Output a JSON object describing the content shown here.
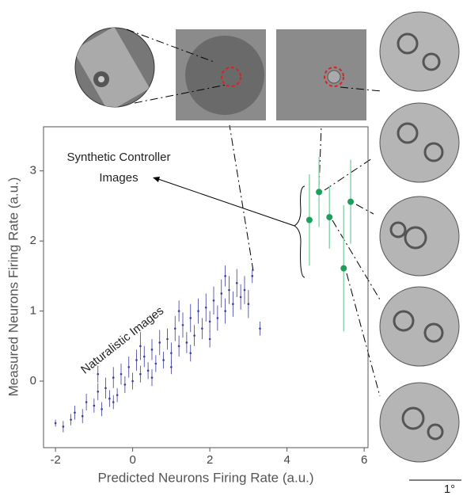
{
  "chart_data": {
    "type": "scatter",
    "x_label": "Predicted Neurons Firing Rate (a.u.)",
    "y_label": "Measured Neurons Firing Rate (a.u.)",
    "synthetic_label": [
      "Synthetic Controller",
      "Images"
    ],
    "natural_label": "Naturalistic Images",
    "scale_bar_label": "1°",
    "xlim": [
      -2.31,
      6.1
    ],
    "ylim": [
      -0.95,
      3.63
    ],
    "xticks": [
      -2,
      0,
      2,
      4,
      6
    ],
    "yticks": [
      0,
      1,
      2,
      3
    ],
    "series": [
      {
        "color": "#3a3aa0",
        "x": [
          -2.0,
          -1.8,
          -1.5,
          -1.3,
          -1.2,
          -1.0,
          -0.9,
          -0.8,
          -0.7,
          -0.6,
          -0.5,
          -0.4,
          -0.3,
          -0.2,
          -0.1,
          0.0,
          0.1,
          0.2,
          0.3,
          0.4,
          0.5,
          0.6,
          0.7,
          0.8,
          0.9,
          1.0,
          1.1,
          1.2,
          1.3,
          1.4,
          1.5,
          1.6,
          1.7,
          1.8,
          1.9,
          2.0,
          2.1,
          2.2,
          2.3,
          2.4,
          2.5,
          2.6,
          2.7,
          2.8,
          2.9,
          3.0,
          3.1,
          3.3,
          -0.5,
          0.5,
          1.0,
          1.5,
          2.0,
          -1.6,
          0.2,
          1.2,
          2.4,
          -0.9
        ],
        "values": [
          -0.6,
          -0.65,
          -0.45,
          -0.5,
          -0.3,
          -0.35,
          -0.15,
          -0.4,
          -0.1,
          -0.25,
          0.05,
          -0.2,
          0.1,
          -0.05,
          0.2,
          0.0,
          0.3,
          0.1,
          0.35,
          0.15,
          0.45,
          0.25,
          0.55,
          0.3,
          0.6,
          0.4,
          0.75,
          0.5,
          0.8,
          0.55,
          0.9,
          0.65,
          1.0,
          0.75,
          1.05,
          0.85,
          1.15,
          0.9,
          1.25,
          1.0,
          1.3,
          1.1,
          1.4,
          1.2,
          1.3,
          1.1,
          1.5,
          0.75,
          -0.3,
          0.05,
          0.2,
          0.4,
          0.6,
          -0.55,
          0.5,
          1.0,
          1.5,
          0.1
        ],
        "errors": [
          0.05,
          0.08,
          0.1,
          0.1,
          0.12,
          0.1,
          0.12,
          0.1,
          0.15,
          0.12,
          0.15,
          0.1,
          0.15,
          0.12,
          0.15,
          0.12,
          0.15,
          0.12,
          0.15,
          0.12,
          0.15,
          0.12,
          0.18,
          0.12,
          0.15,
          0.15,
          0.18,
          0.15,
          0.18,
          0.15,
          0.2,
          0.15,
          0.18,
          0.15,
          0.2,
          0.15,
          0.2,
          0.18,
          0.2,
          0.18,
          0.2,
          0.18,
          0.2,
          0.18,
          0.2,
          0.2,
          0.1,
          0.1,
          0.1,
          0.12,
          0.1,
          0.12,
          0.12,
          0.08,
          0.2,
          0.15,
          0.15,
          0.12
        ]
      },
      {
        "color": "#1aa05a",
        "x": [
          4.58,
          4.83,
          5.1,
          5.47,
          5.65
        ],
        "values": [
          2.3,
          2.7,
          2.34,
          1.61,
          2.56
        ],
        "errors": [
          0.65,
          0.5,
          0.45,
          0.9,
          0.6
        ]
      }
    ]
  }
}
